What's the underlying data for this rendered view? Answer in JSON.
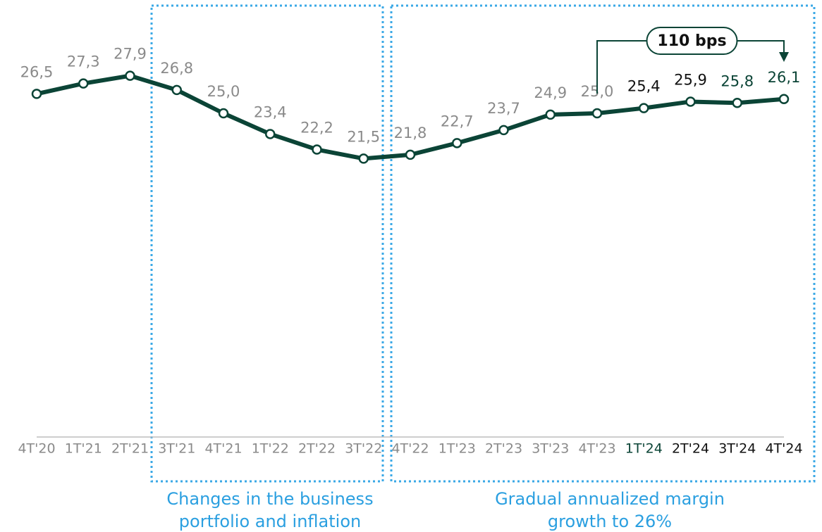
{
  "chart_data": {
    "type": "line",
    "categories": [
      "4T'20",
      "1T'21",
      "2T'21",
      "3T'21",
      "4T'21",
      "1T'22",
      "2T'22",
      "3T'22",
      "4T'22",
      "1T'23",
      "2T'23",
      "3T'23",
      "4T'23",
      "1T'24",
      "2T'24",
      "3T'24",
      "4T'24"
    ],
    "series": [
      {
        "color": "#0b4436",
        "values": [
          26.5,
          27.3,
          27.9,
          26.8,
          25.0,
          23.4,
          22.2,
          21.5,
          21.8,
          22.7,
          23.7,
          24.9,
          25.0,
          25.4,
          25.9,
          25.8,
          26.1
        ],
        "value_labels": [
          "26,5",
          "27,3",
          "27,9",
          "26,8",
          "25,0",
          "23,4",
          "22,2",
          "21,5",
          "21,8",
          "22,7",
          "23,7",
          "24,9",
          "25,0",
          "25,4",
          "25,9",
          "25,8",
          "26,1"
        ],
        "value_label_colors": [
          "#8a8a8a",
          "#8a8a8a",
          "#8a8a8a",
          "#8a8a8a",
          "#8a8a8a",
          "#8a8a8a",
          "#8a8a8a",
          "#8a8a8a",
          "#8a8a8a",
          "#8a8a8a",
          "#8a8a8a",
          "#8a8a8a",
          "#8a8a8a",
          "#111111",
          "#111111",
          "#0b4436",
          "#0b4436"
        ]
      }
    ],
    "category_label_colors": [
      "#8a8a8a",
      "#8a8a8a",
      "#8a8a8a",
      "#8a8a8a",
      "#8a8a8a",
      "#8a8a8a",
      "#8a8a8a",
      "#8a8a8a",
      "#8a8a8a",
      "#8a8a8a",
      "#8a8a8a",
      "#8a8a8a",
      "#8a8a8a",
      "#0b4436",
      "#111111",
      "#111111",
      "#111111"
    ],
    "ylim": [
      0,
      33.75
    ],
    "annotation": "110 bps",
    "groups": [
      {
        "lines": [
          "Changes in the business",
          "portfolio and inflation"
        ]
      },
      {
        "lines": [
          "Gradual annualized margin",
          "growth to 26%"
        ]
      }
    ]
  }
}
